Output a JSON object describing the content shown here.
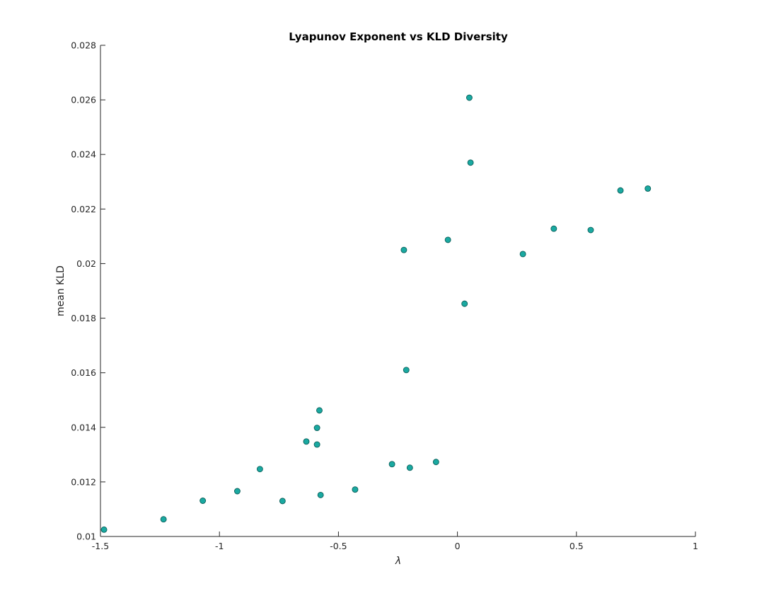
{
  "chart_data": {
    "type": "scatter",
    "title": "Lyapunov Exponent vs KLD Diversity",
    "xlabel": "λ",
    "ylabel": "mean KLD",
    "xlim": [
      -1.5,
      1
    ],
    "ylim": [
      0.01,
      0.028
    ],
    "xticks": [
      -1.5,
      -1,
      -0.5,
      0,
      0.5,
      1
    ],
    "xtick_labels": [
      "-1.5",
      "-1",
      "-0.5",
      "0",
      "0.5",
      "1"
    ],
    "yticks": [
      0.01,
      0.012,
      0.014,
      0.016,
      0.018,
      0.02,
      0.022,
      0.024,
      0.026,
      0.028
    ],
    "ytick_labels": [
      "0.01",
      "0.012",
      "0.014",
      "0.016",
      "0.018",
      "0.02",
      "0.022",
      "0.024",
      "0.026",
      "0.028"
    ],
    "grid": false,
    "marker_color": "#1aa9a1",
    "marker_edge_color": "#0b5f5a",
    "points": [
      {
        "x": -1.485,
        "y": 0.01025
      },
      {
        "x": -1.235,
        "y": 0.01063
      },
      {
        "x": -1.07,
        "y": 0.01131
      },
      {
        "x": -0.925,
        "y": 0.01166
      },
      {
        "x": -0.83,
        "y": 0.01247
      },
      {
        "x": -0.735,
        "y": 0.0113
      },
      {
        "x": -0.635,
        "y": 0.01348
      },
      {
        "x": -0.59,
        "y": 0.01398
      },
      {
        "x": -0.59,
        "y": 0.01337
      },
      {
        "x": -0.58,
        "y": 0.01462
      },
      {
        "x": -0.575,
        "y": 0.01152
      },
      {
        "x": -0.43,
        "y": 0.01172
      },
      {
        "x": -0.275,
        "y": 0.01265
      },
      {
        "x": -0.225,
        "y": 0.0205
      },
      {
        "x": -0.215,
        "y": 0.0161
      },
      {
        "x": -0.2,
        "y": 0.01252
      },
      {
        "x": -0.09,
        "y": 0.01273
      },
      {
        "x": -0.04,
        "y": 0.02087
      },
      {
        "x": 0.03,
        "y": 0.01853
      },
      {
        "x": 0.05,
        "y": 0.02608
      },
      {
        "x": 0.055,
        "y": 0.0237
      },
      {
        "x": 0.275,
        "y": 0.02035
      },
      {
        "x": 0.405,
        "y": 0.02128
      },
      {
        "x": 0.56,
        "y": 0.02123
      },
      {
        "x": 0.685,
        "y": 0.02268
      },
      {
        "x": 0.8,
        "y": 0.02275
      }
    ]
  }
}
